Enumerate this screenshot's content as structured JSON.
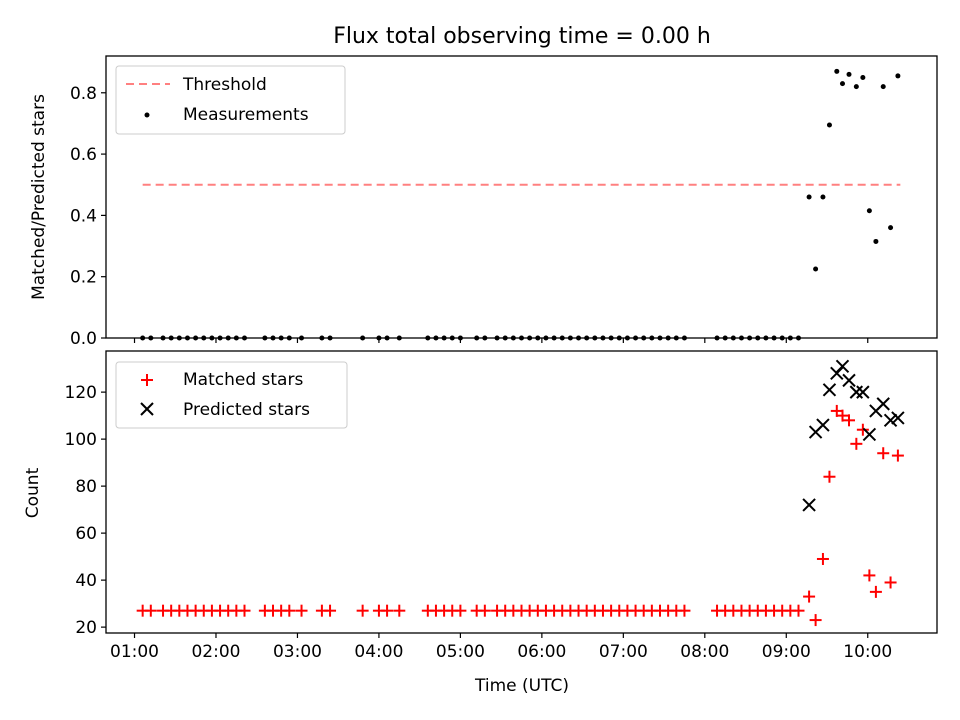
{
  "title": "Flux total observing time = 0.00 h",
  "colors": {
    "threshold": "#ff8080",
    "measurement": "#000000",
    "matched": "#ff0000",
    "predicted": "#000000"
  },
  "chart_data": [
    {
      "type": "scatter",
      "panel": "top",
      "ylabel": "Matched/Predicted stars",
      "ylim": [
        0,
        0.92
      ],
      "yticks": [
        0,
        0.2,
        0.4,
        0.6,
        0.8
      ],
      "ytick_labels": [
        "0.0",
        "0.2",
        "0.4",
        "0.6",
        "0.8"
      ],
      "xlim": [
        0.65,
        10.85
      ],
      "legend": {
        "placement": "top-left",
        "entries": [
          "Threshold",
          "Measurements"
        ]
      },
      "threshold": {
        "name": "Threshold",
        "value": 0.5,
        "x_range": [
          1.1,
          10.4
        ]
      },
      "series": [
        {
          "name": "Measurements",
          "marker": "dot",
          "points": [
            [
              1.1,
              0
            ],
            [
              1.2,
              0
            ],
            [
              1.35,
              0
            ],
            [
              1.45,
              0
            ],
            [
              1.55,
              0
            ],
            [
              1.65,
              0
            ],
            [
              1.75,
              0
            ],
            [
              1.85,
              0
            ],
            [
              1.95,
              0
            ],
            [
              2.05,
              0
            ],
            [
              2.15,
              0
            ],
            [
              2.25,
              0
            ],
            [
              2.35,
              0
            ],
            [
              2.6,
              0
            ],
            [
              2.7,
              0
            ],
            [
              2.8,
              0
            ],
            [
              2.9,
              0
            ],
            [
              3.05,
              0
            ],
            [
              3.3,
              0
            ],
            [
              3.4,
              0
            ],
            [
              3.8,
              0
            ],
            [
              4.0,
              0
            ],
            [
              4.1,
              0
            ],
            [
              4.25,
              0
            ],
            [
              4.6,
              0
            ],
            [
              4.7,
              0
            ],
            [
              4.8,
              0
            ],
            [
              4.9,
              0
            ],
            [
              5.0,
              0
            ],
            [
              5.2,
              0
            ],
            [
              5.3,
              0
            ],
            [
              5.45,
              0
            ],
            [
              5.55,
              0
            ],
            [
              5.65,
              0
            ],
            [
              5.75,
              0
            ],
            [
              5.85,
              0
            ],
            [
              5.95,
              0
            ],
            [
              6.05,
              0
            ],
            [
              6.15,
              0
            ],
            [
              6.25,
              0
            ],
            [
              6.35,
              0
            ],
            [
              6.45,
              0
            ],
            [
              6.55,
              0
            ],
            [
              6.65,
              0
            ],
            [
              6.75,
              0
            ],
            [
              6.85,
              0
            ],
            [
              6.95,
              0
            ],
            [
              7.05,
              0
            ],
            [
              7.15,
              0
            ],
            [
              7.25,
              0
            ],
            [
              7.35,
              0
            ],
            [
              7.45,
              0
            ],
            [
              7.55,
              0
            ],
            [
              7.65,
              0
            ],
            [
              7.75,
              0
            ],
            [
              8.15,
              0
            ],
            [
              8.25,
              0
            ],
            [
              8.35,
              0
            ],
            [
              8.45,
              0
            ],
            [
              8.55,
              0
            ],
            [
              8.65,
              0
            ],
            [
              8.75,
              0
            ],
            [
              8.85,
              0
            ],
            [
              8.95,
              0
            ],
            [
              9.05,
              0
            ],
            [
              9.15,
              0
            ],
            [
              9.28,
              0.46
            ],
            [
              9.36,
              0.225
            ],
            [
              9.45,
              0.46
            ],
            [
              9.53,
              0.695
            ],
            [
              9.62,
              0.87
            ],
            [
              9.69,
              0.83
            ],
            [
              9.77,
              0.86
            ],
            [
              9.86,
              0.82
            ],
            [
              9.94,
              0.85
            ],
            [
              10.02,
              0.415
            ],
            [
              10.1,
              0.315
            ],
            [
              10.19,
              0.82
            ],
            [
              10.28,
              0.36
            ],
            [
              10.37,
              0.855
            ]
          ]
        }
      ]
    },
    {
      "type": "scatter",
      "panel": "bottom",
      "xlabel": "Time (UTC)",
      "ylabel": "Count",
      "ylim": [
        17.5,
        137.5
      ],
      "yticks": [
        20,
        40,
        60,
        80,
        100,
        120
      ],
      "xlim": [
        0.65,
        10.85
      ],
      "xticks": [
        1,
        2,
        3,
        4,
        5,
        6,
        7,
        8,
        9,
        10
      ],
      "xtick_labels": [
        "01:00",
        "02:00",
        "03:00",
        "04:00",
        "05:00",
        "06:00",
        "07:00",
        "08:00",
        "09:00",
        "10:00"
      ],
      "legend": {
        "placement": "top-left",
        "entries": [
          "Matched stars",
          "Predicted stars"
        ]
      },
      "series": [
        {
          "name": "Matched stars",
          "marker": "plus",
          "points": [
            [
              1.1,
              27
            ],
            [
              1.2,
              27
            ],
            [
              1.35,
              27
            ],
            [
              1.45,
              27
            ],
            [
              1.55,
              27
            ],
            [
              1.65,
              27
            ],
            [
              1.75,
              27
            ],
            [
              1.85,
              27
            ],
            [
              1.95,
              27
            ],
            [
              2.05,
              27
            ],
            [
              2.15,
              27
            ],
            [
              2.25,
              27
            ],
            [
              2.35,
              27
            ],
            [
              2.6,
              27
            ],
            [
              2.7,
              27
            ],
            [
              2.8,
              27
            ],
            [
              2.9,
              27
            ],
            [
              3.05,
              27
            ],
            [
              3.3,
              27
            ],
            [
              3.4,
              27
            ],
            [
              3.8,
              27
            ],
            [
              4.0,
              27
            ],
            [
              4.1,
              27
            ],
            [
              4.25,
              27
            ],
            [
              4.6,
              27
            ],
            [
              4.7,
              27
            ],
            [
              4.8,
              27
            ],
            [
              4.9,
              27
            ],
            [
              5.0,
              27
            ],
            [
              5.2,
              27
            ],
            [
              5.3,
              27
            ],
            [
              5.45,
              27
            ],
            [
              5.55,
              27
            ],
            [
              5.65,
              27
            ],
            [
              5.75,
              27
            ],
            [
              5.85,
              27
            ],
            [
              5.95,
              27
            ],
            [
              6.05,
              27
            ],
            [
              6.15,
              27
            ],
            [
              6.25,
              27
            ],
            [
              6.35,
              27
            ],
            [
              6.45,
              27
            ],
            [
              6.55,
              27
            ],
            [
              6.65,
              27
            ],
            [
              6.75,
              27
            ],
            [
              6.85,
              27
            ],
            [
              6.95,
              27
            ],
            [
              7.05,
              27
            ],
            [
              7.15,
              27
            ],
            [
              7.25,
              27
            ],
            [
              7.35,
              27
            ],
            [
              7.45,
              27
            ],
            [
              7.55,
              27
            ],
            [
              7.65,
              27
            ],
            [
              7.75,
              27
            ],
            [
              8.15,
              27
            ],
            [
              8.25,
              27
            ],
            [
              8.35,
              27
            ],
            [
              8.45,
              27
            ],
            [
              8.55,
              27
            ],
            [
              8.65,
              27
            ],
            [
              8.75,
              27
            ],
            [
              8.85,
              27
            ],
            [
              8.95,
              27
            ],
            [
              9.05,
              27
            ],
            [
              9.15,
              27
            ],
            [
              9.28,
              33
            ],
            [
              9.36,
              23
            ],
            [
              9.45,
              49
            ],
            [
              9.53,
              84
            ],
            [
              9.62,
              112
            ],
            [
              9.69,
              110
            ],
            [
              9.77,
              108
            ],
            [
              9.86,
              98
            ],
            [
              9.94,
              104
            ],
            [
              10.02,
              42
            ],
            [
              10.1,
              35
            ],
            [
              10.19,
              94
            ],
            [
              10.28,
              39
            ],
            [
              10.37,
              93
            ]
          ]
        },
        {
          "name": "Predicted stars",
          "marker": "x",
          "points": [
            [
              9.28,
              72
            ],
            [
              9.36,
              103
            ],
            [
              9.45,
              106
            ],
            [
              9.53,
              121
            ],
            [
              9.62,
              128
            ],
            [
              9.69,
              131
            ],
            [
              9.77,
              125
            ],
            [
              9.86,
              120
            ],
            [
              9.94,
              120
            ],
            [
              10.02,
              102
            ],
            [
              10.1,
              112
            ],
            [
              10.19,
              115
            ],
            [
              10.28,
              108
            ],
            [
              10.37,
              109
            ]
          ]
        }
      ]
    }
  ]
}
